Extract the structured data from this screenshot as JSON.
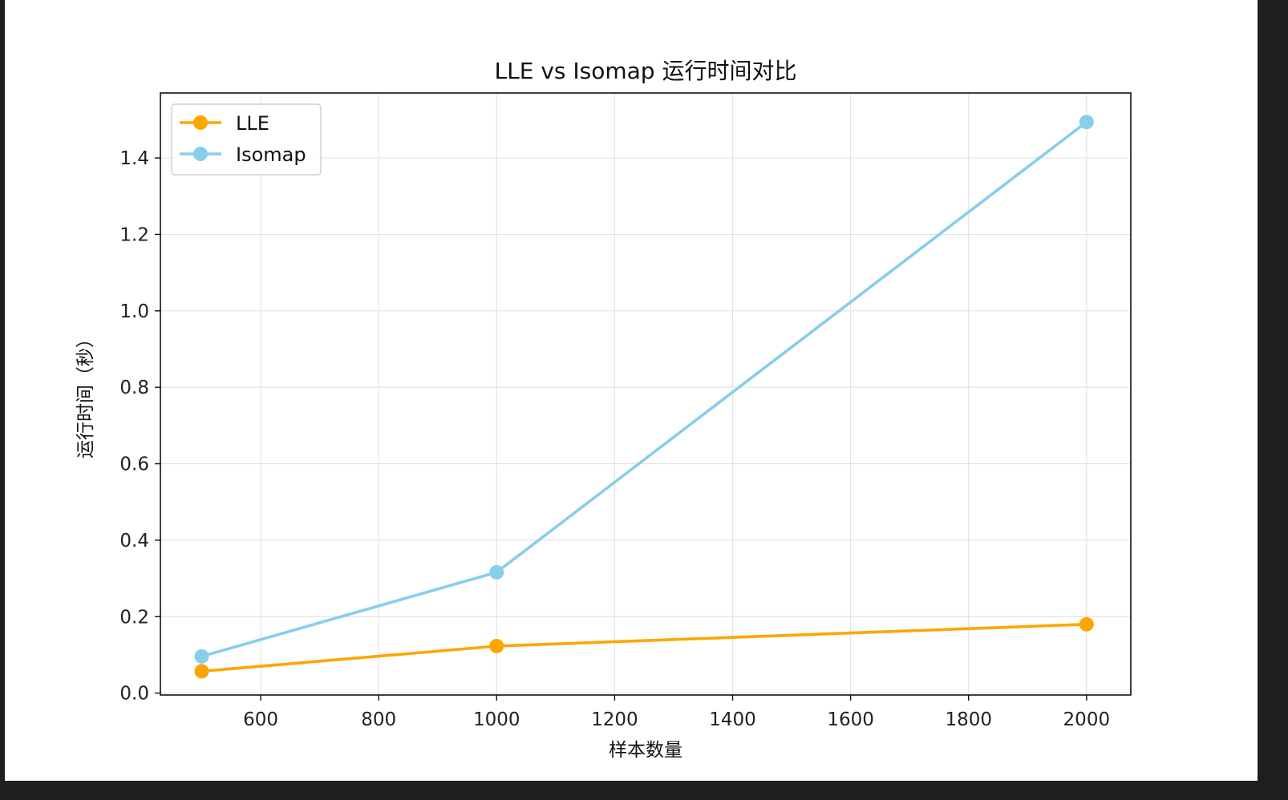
{
  "chart_data": {
    "type": "line",
    "title": "LLE vs Isomap 运行时间对比",
    "xlabel": "样本数量",
    "ylabel": "运行时间（秒）",
    "x": [
      500,
      1000,
      2000
    ],
    "xlim": [
      430,
      2075
    ],
    "ylim": [
      -0.005,
      1.57
    ],
    "xticks": [
      600,
      800,
      1000,
      1200,
      1400,
      1600,
      1800,
      2000
    ],
    "yticks": [
      0.0,
      0.2,
      0.4,
      0.6,
      0.8,
      1.0,
      1.2,
      1.4
    ],
    "ytick_labels": [
      "0.0",
      "0.2",
      "0.4",
      "0.6",
      "0.8",
      "1.0",
      "1.2",
      "1.4"
    ],
    "grid": true,
    "legend_position": "top-left",
    "series": [
      {
        "name": "LLE",
        "values": [
          0.057,
          0.123,
          0.18
        ],
        "color": "#ffa500",
        "marker": "circle"
      },
      {
        "name": "Isomap",
        "values": [
          0.096,
          0.316,
          1.494
        ],
        "color": "#87ceeb",
        "marker": "circle"
      }
    ]
  }
}
